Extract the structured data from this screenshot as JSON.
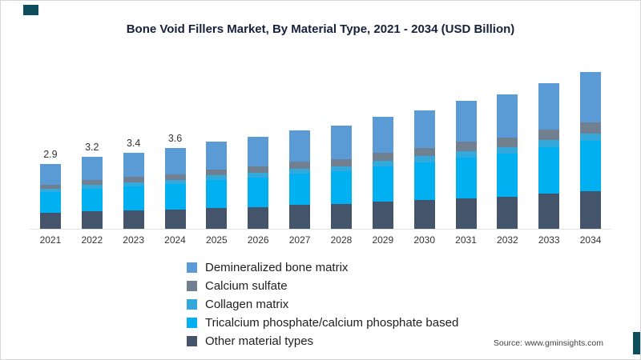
{
  "title": "Bone Void Fillers Market, By Material Type, 2021 - 2034 (USD Billion)",
  "source": "Source: www.gminsights.com",
  "accent_color": "#0E4D5C",
  "chart_data": {
    "type": "bar",
    "stacked": true,
    "title": "Bone Void Fillers Market, By Material Type, 2021 - 2034 (USD Billion)",
    "unit": "USD Billion",
    "categories": [
      "2021",
      "2022",
      "2023",
      "2024",
      "2025",
      "2026",
      "2027",
      "2028",
      "2029",
      "2030",
      "2031",
      "2032",
      "2033",
      "2034"
    ],
    "value_labels": [
      "2.9",
      "3.2",
      "3.4",
      "3.6",
      "",
      "",
      "",
      "",
      "",
      "",
      "",
      "",
      "",
      ""
    ],
    "totals": [
      2.9,
      3.2,
      3.4,
      3.6,
      3.9,
      4.1,
      4.4,
      4.6,
      5.0,
      5.3,
      5.7,
      6.0,
      6.5,
      7.0
    ],
    "series": [
      {
        "name": "Demineralized bone matrix",
        "color": "#5B9BD5",
        "values": [
          0.92,
          1.03,
          1.08,
          1.16,
          1.24,
          1.31,
          1.4,
          1.48,
          1.6,
          1.69,
          1.82,
          1.92,
          2.07,
          2.24
        ]
      },
      {
        "name": "Calcium sulfate",
        "color": "#708090",
        "values": [
          0.2,
          0.22,
          0.24,
          0.25,
          0.27,
          0.29,
          0.31,
          0.32,
          0.35,
          0.37,
          0.4,
          0.42,
          0.46,
          0.49
        ]
      },
      {
        "name": "Collagen matrix",
        "color": "#33A9DC",
        "values": [
          0.15,
          0.16,
          0.17,
          0.18,
          0.2,
          0.21,
          0.22,
          0.23,
          0.25,
          0.27,
          0.29,
          0.3,
          0.33,
          0.35
        ]
      },
      {
        "name": "Tricalcium phosphate/calcium phosphate based",
        "color": "#00B0F0",
        "values": [
          0.93,
          1.02,
          1.09,
          1.15,
          1.25,
          1.31,
          1.41,
          1.47,
          1.6,
          1.7,
          1.82,
          1.92,
          2.08,
          2.24
        ]
      },
      {
        "name": "Other material types",
        "color": "#44546A",
        "values": [
          0.7,
          0.77,
          0.82,
          0.86,
          0.94,
          0.98,
          1.06,
          1.1,
          1.2,
          1.27,
          1.37,
          1.44,
          1.56,
          1.68
        ]
      }
    ],
    "legend_position": "bottom-left",
    "ylim": [
      0,
      7.5
    ],
    "grid": false,
    "xlabel": "",
    "ylabel": ""
  }
}
